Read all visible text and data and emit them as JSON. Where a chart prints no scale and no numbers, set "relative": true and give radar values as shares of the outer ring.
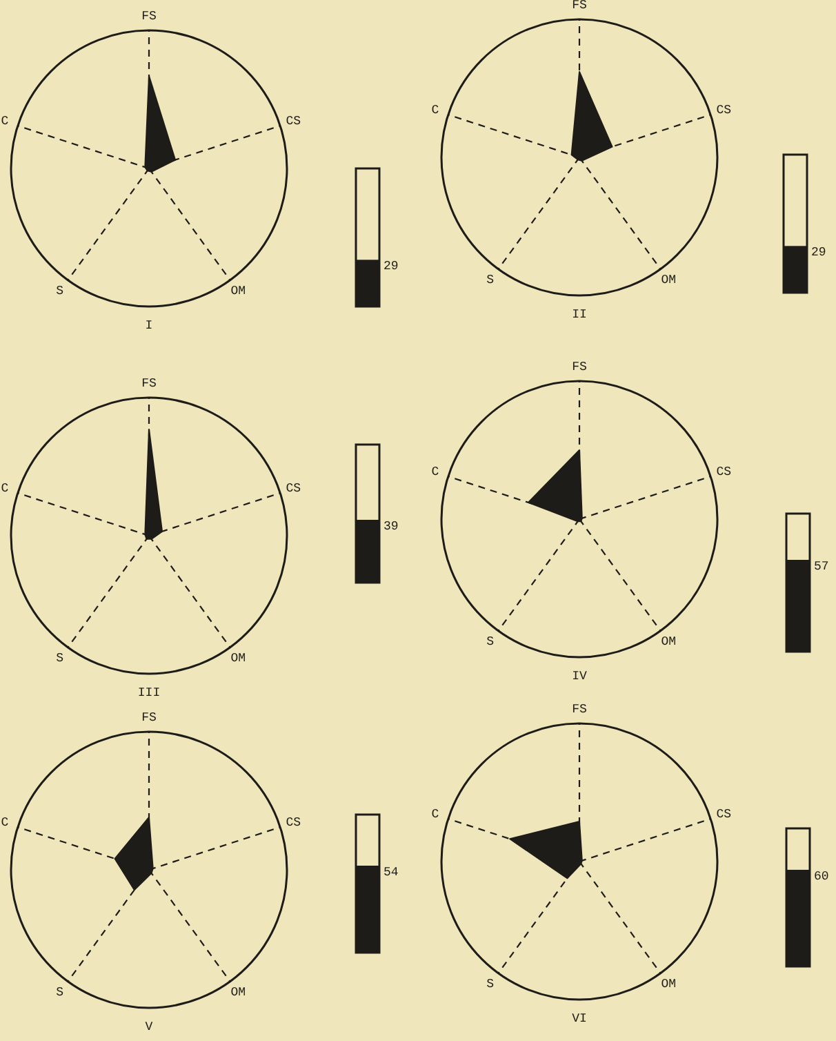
{
  "chart_data": [
    {
      "type": "radar",
      "title": "I",
      "relative": true,
      "categories": [
        "FS",
        "CS",
        "OM",
        "S",
        "C"
      ],
      "series": [
        {
          "color": "#1e1c18",
          "values": [
            0.67,
            0.2,
            0.03,
            0.02,
            0.03
          ]
        }
      ]
    },
    {
      "type": "other",
      "categories": [
        null
      ],
      "values": [
        29
      ],
      "color": "#1e1c18",
      "data_labels": true
    },
    {
      "type": "radar",
      "title": "II",
      "relative": true,
      "categories": [
        "FS",
        "CS",
        "OM",
        "S",
        "C"
      ],
      "series": [
        {
          "color": "#1e1c18",
          "values": [
            0.62,
            0.25,
            0.03,
            0.02,
            0.06
          ]
        }
      ]
    },
    {
      "type": "other",
      "categories": [
        null
      ],
      "values": [
        29
      ],
      "color": "#1e1c18",
      "data_labels": true
    },
    {
      "type": "radar",
      "title": "III",
      "relative": true,
      "categories": [
        "FS",
        "CS",
        "OM",
        "S",
        "C"
      ],
      "series": [
        {
          "color": "#1e1c18",
          "values": [
            0.77,
            0.1,
            0.03,
            0.03,
            0.03
          ]
        }
      ]
    },
    {
      "type": "other",
      "categories": [
        null
      ],
      "values": [
        39
      ],
      "color": "#1e1c18",
      "data_labels": true
    },
    {
      "type": "radar",
      "title": "IV",
      "relative": true,
      "categories": [
        "FS",
        "CS",
        "OM",
        "S",
        "C"
      ],
      "series": [
        {
          "color": "#1e1c18",
          "values": [
            0.5,
            0.02,
            0.02,
            0.02,
            0.39
          ]
        }
      ]
    },
    {
      "type": "other",
      "categories": [
        null
      ],
      "values": [
        57
      ],
      "color": "#1e1c18",
      "data_labels": true
    },
    {
      "type": "radar",
      "title": "V",
      "relative": true,
      "categories": [
        "FS",
        "CS",
        "OM",
        "S",
        "C"
      ],
      "series": [
        {
          "color": "#1e1c18",
          "values": [
            0.38,
            0.03,
            0.03,
            0.18,
            0.26
          ]
        }
      ]
    },
    {
      "type": "other",
      "categories": [
        null
      ],
      "values": [
        54
      ],
      "color": "#1e1c18",
      "data_labels": true
    },
    {
      "type": "radar",
      "title": "VI",
      "relative": true,
      "categories": [
        "FS",
        "CS",
        "OM",
        "S",
        "C"
      ],
      "series": [
        {
          "color": "#1e1c18",
          "values": [
            0.29,
            0.02,
            0.02,
            0.15,
            0.53
          ]
        }
      ]
    },
    {
      "type": "other",
      "categories": [
        null
      ],
      "values": [
        60
      ],
      "color": "#1e1c18",
      "data_labels": true
    }
  ]
}
